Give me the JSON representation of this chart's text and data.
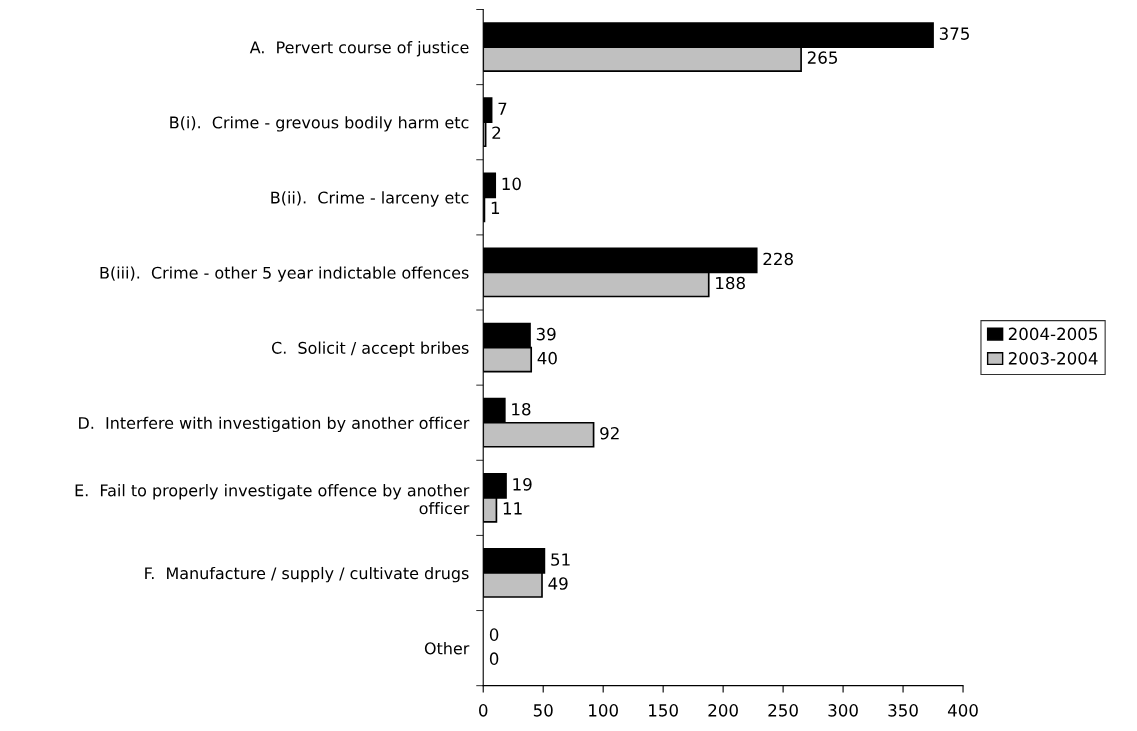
{
  "chart_data": {
    "type": "bar",
    "orientation": "horizontal",
    "categories": [
      "A.  Pervert course of justice",
      "B(i).  Crime - grevous bodily harm etc",
      "B(ii).  Crime - larceny etc",
      "B(iii).  Crime - other 5 year indictable offences",
      "C.  Solicit / accept bribes",
      "D.  Interfere with investigation by another officer",
      "E.  Fail to properly investigate offence by another officer",
      "F.  Manufacture / supply / cultivate drugs",
      "Other"
    ],
    "series": [
      {
        "name": "2004-2005",
        "color": "#000000",
        "values": [
          375,
          7,
          10,
          228,
          39,
          18,
          19,
          51,
          0
        ]
      },
      {
        "name": "2003-2004",
        "color": "#c0c0c0",
        "values": [
          265,
          2,
          1,
          188,
          40,
          92,
          11,
          49,
          0
        ]
      }
    ],
    "xlim": [
      0,
      400
    ],
    "xticks": [
      0,
      50,
      100,
      150,
      200,
      250,
      300,
      350,
      400
    ],
    "data_labels": true,
    "legend": "right",
    "grid": false
  }
}
